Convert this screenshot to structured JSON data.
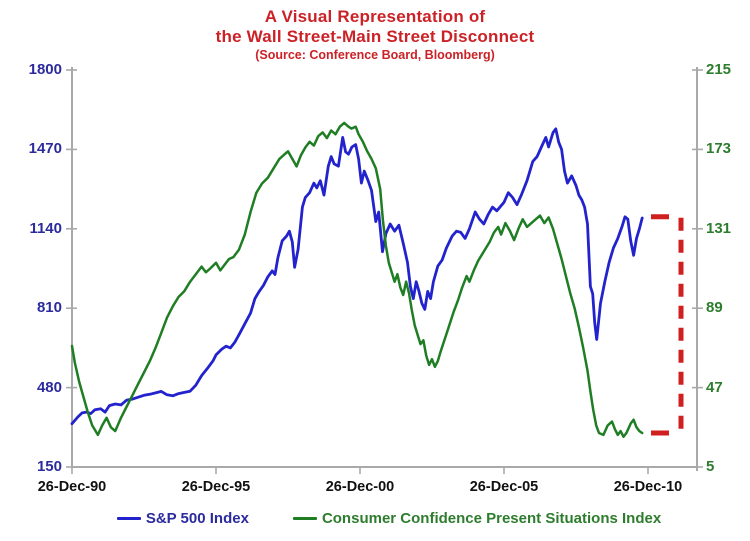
{
  "title": {
    "line1": "A Visual Representation of",
    "line2": "the Wall Street-Main Street Disconnect",
    "source": "(Source: Conference Board, Bloomberg)"
  },
  "colors": {
    "background": "#ffffff",
    "title_red": "#cb2227",
    "sp500_blue": "#2323cd",
    "confidence_green": "#1f7e23",
    "left_axis_text": "#2b2b9e",
    "right_axis_text": "#2e7d2e",
    "x_axis_text": "#111111",
    "axis_line_gray": "#a9a9a9",
    "bracket_red": "#cf1f1f"
  },
  "legend": [
    {
      "label": "S&P 500 Index",
      "color": "#2323cd"
    },
    {
      "label": "Consumer Confidence Present Situations Index",
      "color": "#1f7e23"
    }
  ],
  "chart_data": {
    "type": "line",
    "title": "A Visual Representation of the Wall Street-Main Street Disconnect",
    "x_axis": {
      "tick_labels": [
        "26-Dec-90",
        "26-Dec-95",
        "26-Dec-00",
        "26-Dec-05",
        "26-Dec-10"
      ],
      "tick_positions_years": [
        0,
        5,
        10,
        15,
        20
      ],
      "unit": "years since 26-Dec-90"
    },
    "left_y_axis": {
      "label_series": "S&P 500 Index",
      "ticks": [
        1800,
        1470,
        1140,
        810,
        480,
        150
      ],
      "range": [
        150,
        1800
      ]
    },
    "right_y_axis": {
      "label_series": "Consumer Confidence Present Situations Index",
      "ticks": [
        215,
        173,
        131,
        89,
        47,
        5
      ],
      "range": [
        5,
        215
      ]
    },
    "grid": "off",
    "legend_position": "bottom",
    "series": [
      {
        "name": "S&P 500 Index",
        "axis": "left",
        "color": "#2323cd",
        "points": [
          [
            0,
            330
          ],
          [
            0.2,
            358
          ],
          [
            0.35,
            375
          ],
          [
            0.5,
            378
          ],
          [
            0.65,
            372
          ],
          [
            0.8,
            388
          ],
          [
            1,
            392
          ],
          [
            1.15,
            378
          ],
          [
            1.3,
            405
          ],
          [
            1.5,
            412
          ],
          [
            1.7,
            408
          ],
          [
            1.9,
            428
          ],
          [
            2.1,
            432
          ],
          [
            2.3,
            440
          ],
          [
            2.5,
            448
          ],
          [
            2.7,
            452
          ],
          [
            2.9,
            458
          ],
          [
            3.1,
            464
          ],
          [
            3.3,
            450
          ],
          [
            3.5,
            446
          ],
          [
            3.7,
            455
          ],
          [
            3.9,
            460
          ],
          [
            4.1,
            465
          ],
          [
            4.3,
            490
          ],
          [
            4.5,
            530
          ],
          [
            4.7,
            560
          ],
          [
            4.9,
            592
          ],
          [
            5,
            616
          ],
          [
            5.2,
            640
          ],
          [
            5.35,
            652
          ],
          [
            5.5,
            645
          ],
          [
            5.65,
            668
          ],
          [
            5.8,
            700
          ],
          [
            6,
            745
          ],
          [
            6.2,
            790
          ],
          [
            6.35,
            850
          ],
          [
            6.5,
            880
          ],
          [
            6.65,
            905
          ],
          [
            6.8,
            940
          ],
          [
            6.95,
            965
          ],
          [
            7.05,
            950
          ],
          [
            7.15,
            1020
          ],
          [
            7.3,
            1090
          ],
          [
            7.45,
            1110
          ],
          [
            7.55,
            1130
          ],
          [
            7.65,
            1085
          ],
          [
            7.73,
            980
          ],
          [
            7.85,
            1055
          ],
          [
            8,
            1230
          ],
          [
            8.1,
            1270
          ],
          [
            8.25,
            1290
          ],
          [
            8.4,
            1330
          ],
          [
            8.5,
            1310
          ],
          [
            8.62,
            1340
          ],
          [
            8.75,
            1280
          ],
          [
            8.9,
            1400
          ],
          [
            9,
            1440
          ],
          [
            9.1,
            1410
          ],
          [
            9.25,
            1400
          ],
          [
            9.4,
            1520
          ],
          [
            9.5,
            1460
          ],
          [
            9.6,
            1450
          ],
          [
            9.72,
            1480
          ],
          [
            9.85,
            1490
          ],
          [
            9.95,
            1430
          ],
          [
            10.05,
            1330
          ],
          [
            10.15,
            1380
          ],
          [
            10.28,
            1340
          ],
          [
            10.4,
            1300
          ],
          [
            10.55,
            1170
          ],
          [
            10.65,
            1210
          ],
          [
            10.78,
            1045
          ],
          [
            10.9,
            1120
          ],
          [
            11.05,
            1160
          ],
          [
            11.2,
            1130
          ],
          [
            11.35,
            1155
          ],
          [
            11.5,
            1080
          ],
          [
            11.65,
            1000
          ],
          [
            11.75,
            900
          ],
          [
            11.85,
            850
          ],
          [
            11.95,
            920
          ],
          [
            12.05,
            880
          ],
          [
            12.15,
            830
          ],
          [
            12.25,
            805
          ],
          [
            12.35,
            880
          ],
          [
            12.45,
            850
          ],
          [
            12.55,
            920
          ],
          [
            12.7,
            985
          ],
          [
            12.85,
            1010
          ],
          [
            13,
            1060
          ],
          [
            13.2,
            1110
          ],
          [
            13.35,
            1130
          ],
          [
            13.5,
            1125
          ],
          [
            13.65,
            1100
          ],
          [
            13.8,
            1140
          ],
          [
            14,
            1210
          ],
          [
            14.15,
            1180
          ],
          [
            14.3,
            1160
          ],
          [
            14.45,
            1200
          ],
          [
            14.6,
            1230
          ],
          [
            14.75,
            1215
          ],
          [
            15,
            1250
          ],
          [
            15.15,
            1290
          ],
          [
            15.3,
            1270
          ],
          [
            15.45,
            1240
          ],
          [
            15.6,
            1280
          ],
          [
            15.8,
            1340
          ],
          [
            16,
            1420
          ],
          [
            16.15,
            1440
          ],
          [
            16.3,
            1480
          ],
          [
            16.45,
            1520
          ],
          [
            16.55,
            1480
          ],
          [
            16.7,
            1540
          ],
          [
            16.8,
            1555
          ],
          [
            16.9,
            1500
          ],
          [
            17,
            1470
          ],
          [
            17.1,
            1380
          ],
          [
            17.2,
            1330
          ],
          [
            17.35,
            1360
          ],
          [
            17.5,
            1320
          ],
          [
            17.6,
            1280
          ],
          [
            17.7,
            1260
          ],
          [
            17.8,
            1230
          ],
          [
            17.9,
            1160
          ],
          [
            18,
            900
          ],
          [
            18.08,
            870
          ],
          [
            18.15,
            750
          ],
          [
            18.22,
            680
          ],
          [
            18.35,
            830
          ],
          [
            18.5,
            920
          ],
          [
            18.65,
            1000
          ],
          [
            18.8,
            1060
          ],
          [
            18.95,
            1100
          ],
          [
            19.1,
            1150
          ],
          [
            19.2,
            1190
          ],
          [
            19.3,
            1180
          ],
          [
            19.4,
            1090
          ],
          [
            19.5,
            1030
          ],
          [
            19.6,
            1100
          ],
          [
            19.7,
            1140
          ],
          [
            19.8,
            1185
          ]
        ]
      },
      {
        "name": "Consumer Confidence Present Situations Index",
        "axis": "right",
        "color": "#1f7e23",
        "points": [
          [
            0,
            69
          ],
          [
            0.1,
            60
          ],
          [
            0.25,
            50
          ],
          [
            0.4,
            42
          ],
          [
            0.55,
            34
          ],
          [
            0.7,
            27
          ],
          [
            0.9,
            22
          ],
          [
            1.05,
            27
          ],
          [
            1.2,
            31
          ],
          [
            1.35,
            26
          ],
          [
            1.5,
            24
          ],
          [
            1.7,
            31
          ],
          [
            1.9,
            37
          ],
          [
            2.1,
            43
          ],
          [
            2.3,
            49
          ],
          [
            2.5,
            55
          ],
          [
            2.7,
            61
          ],
          [
            2.9,
            68
          ],
          [
            3.1,
            76
          ],
          [
            3.3,
            84
          ],
          [
            3.5,
            90
          ],
          [
            3.7,
            95
          ],
          [
            3.9,
            98
          ],
          [
            4.1,
            103
          ],
          [
            4.3,
            107
          ],
          [
            4.5,
            111
          ],
          [
            4.65,
            108
          ],
          [
            4.8,
            110
          ],
          [
            5,
            113
          ],
          [
            5.15,
            109
          ],
          [
            5.3,
            112
          ],
          [
            5.45,
            115
          ],
          [
            5.6,
            116
          ],
          [
            5.8,
            120
          ],
          [
            6,
            128
          ],
          [
            6.2,
            140
          ],
          [
            6.4,
            150
          ],
          [
            6.6,
            155
          ],
          [
            6.8,
            158
          ],
          [
            7,
            163
          ],
          [
            7.2,
            168
          ],
          [
            7.35,
            170
          ],
          [
            7.5,
            172
          ],
          [
            7.65,
            168
          ],
          [
            7.8,
            164
          ],
          [
            7.95,
            170
          ],
          [
            8.1,
            174
          ],
          [
            8.25,
            177
          ],
          [
            8.4,
            175
          ],
          [
            8.55,
            180
          ],
          [
            8.7,
            182
          ],
          [
            8.85,
            179
          ],
          [
            9,
            183
          ],
          [
            9.15,
            181
          ],
          [
            9.3,
            185
          ],
          [
            9.45,
            187
          ],
          [
            9.6,
            185
          ],
          [
            9.7,
            184
          ],
          [
            9.85,
            185
          ],
          [
            9.95,
            181
          ],
          [
            10.1,
            177
          ],
          [
            10.25,
            172
          ],
          [
            10.4,
            168
          ],
          [
            10.55,
            163
          ],
          [
            10.7,
            152
          ],
          [
            10.8,
            135
          ],
          [
            10.9,
            122
          ],
          [
            11,
            113
          ],
          [
            11.1,
            108
          ],
          [
            11.2,
            103
          ],
          [
            11.3,
            107
          ],
          [
            11.4,
            100
          ],
          [
            11.5,
            96
          ],
          [
            11.6,
            103
          ],
          [
            11.7,
            97
          ],
          [
            11.8,
            88
          ],
          [
            11.9,
            80
          ],
          [
            12,
            75
          ],
          [
            12.1,
            70
          ],
          [
            12.2,
            72
          ],
          [
            12.3,
            64
          ],
          [
            12.4,
            59
          ],
          [
            12.5,
            62
          ],
          [
            12.6,
            58
          ],
          [
            12.7,
            61
          ],
          [
            12.8,
            66
          ],
          [
            12.95,
            73
          ],
          [
            13.1,
            80
          ],
          [
            13.25,
            87
          ],
          [
            13.4,
            93
          ],
          [
            13.55,
            100
          ],
          [
            13.7,
            106
          ],
          [
            13.8,
            103
          ],
          [
            13.95,
            109
          ],
          [
            14.1,
            114
          ],
          [
            14.3,
            119
          ],
          [
            14.5,
            124
          ],
          [
            14.65,
            129
          ],
          [
            14.8,
            132
          ],
          [
            14.9,
            128
          ],
          [
            15.05,
            134
          ],
          [
            15.2,
            130
          ],
          [
            15.35,
            125
          ],
          [
            15.5,
            131
          ],
          [
            15.65,
            136
          ],
          [
            15.8,
            132
          ],
          [
            15.95,
            134
          ],
          [
            16.1,
            136
          ],
          [
            16.25,
            138
          ],
          [
            16.4,
            134
          ],
          [
            16.55,
            137
          ],
          [
            16.7,
            131
          ],
          [
            16.85,
            123
          ],
          [
            17,
            115
          ],
          [
            17.15,
            106
          ],
          [
            17.3,
            97
          ],
          [
            17.45,
            89
          ],
          [
            17.6,
            79
          ],
          [
            17.75,
            68
          ],
          [
            17.9,
            56
          ],
          [
            18,
            45
          ],
          [
            18.1,
            35
          ],
          [
            18.2,
            27
          ],
          [
            18.3,
            23
          ],
          [
            18.45,
            22
          ],
          [
            18.6,
            27
          ],
          [
            18.75,
            29
          ],
          [
            18.85,
            25
          ],
          [
            18.95,
            22
          ],
          [
            19.05,
            24
          ],
          [
            19.15,
            21
          ],
          [
            19.25,
            23
          ],
          [
            19.4,
            28
          ],
          [
            19.5,
            30
          ],
          [
            19.6,
            26
          ],
          [
            19.7,
            24
          ],
          [
            19.8,
            23
          ]
        ]
      }
    ],
    "annotation_bracket": {
      "description": "Red dashed bracket at right edge highlighting the gap between the S&P 500 level and the Consumer Confidence Present Situations level at the end of the chart",
      "top_value_left_axis": 1190,
      "bottom_value_right_axis": 23,
      "color": "#cf1f1f",
      "style": "dashed"
    }
  }
}
